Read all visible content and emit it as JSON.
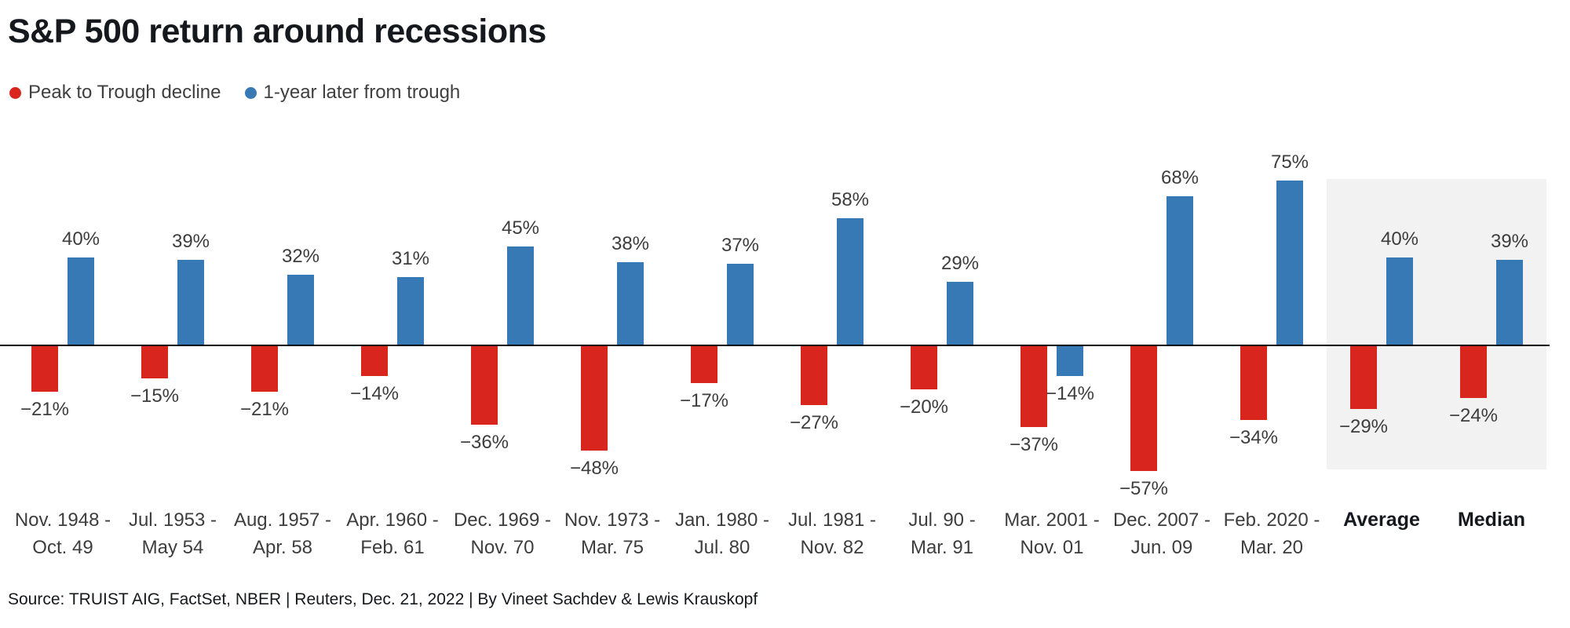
{
  "title": "S&P 500 return around recessions",
  "legend": [
    {
      "label": "Peak to Trough decline",
      "color": "#d8261f"
    },
    {
      "label": "1-year later from trough",
      "color": "#3779b5"
    }
  ],
  "source": "Source: TRUIST AIG, FactSet, NBER | Reuters, Dec. 21, 2022 | By Vineet Sachdev & Lewis Krauskopf",
  "chart_data": {
    "type": "bar",
    "title": "S&P 500 return around recessions",
    "value_suffix": "%",
    "grid": false,
    "legend_position": "top-left",
    "ylim": [
      -60,
      80
    ],
    "categories": [
      "Nov. 1948 -\nOct. 49",
      "Jul. 1953 -\nMay 54",
      "Aug. 1957 -\nApr. 58",
      "Apr. 1960 -\nFeb. 61",
      "Dec. 1969 -\nNov. 70",
      "Nov. 1973 -\nMar. 75",
      "Jan. 1980 -\nJul. 80",
      "Jul. 1981 -\nNov. 82",
      "Jul. 90 -\nMar. 91",
      "Mar. 2001 -\nNov. 01",
      "Dec. 2007 -\nJun. 09",
      "Feb. 2020 -\nMar. 20",
      "Average",
      "Median"
    ],
    "highlight_categories": [
      "Average",
      "Median"
    ],
    "highlight_color": "#f2f2f2",
    "series": [
      {
        "name": "Peak to Trough decline",
        "color": "#d8261f",
        "values": [
          -21,
          -15,
          -21,
          -14,
          -36,
          -48,
          -17,
          -27,
          -20,
          -37,
          -57,
          -34,
          -29,
          -24
        ]
      },
      {
        "name": "1-year later from trough",
        "color": "#3779b5",
        "values": [
          40,
          39,
          32,
          31,
          45,
          38,
          37,
          58,
          29,
          -14,
          68,
          75,
          40,
          39
        ]
      }
    ]
  }
}
